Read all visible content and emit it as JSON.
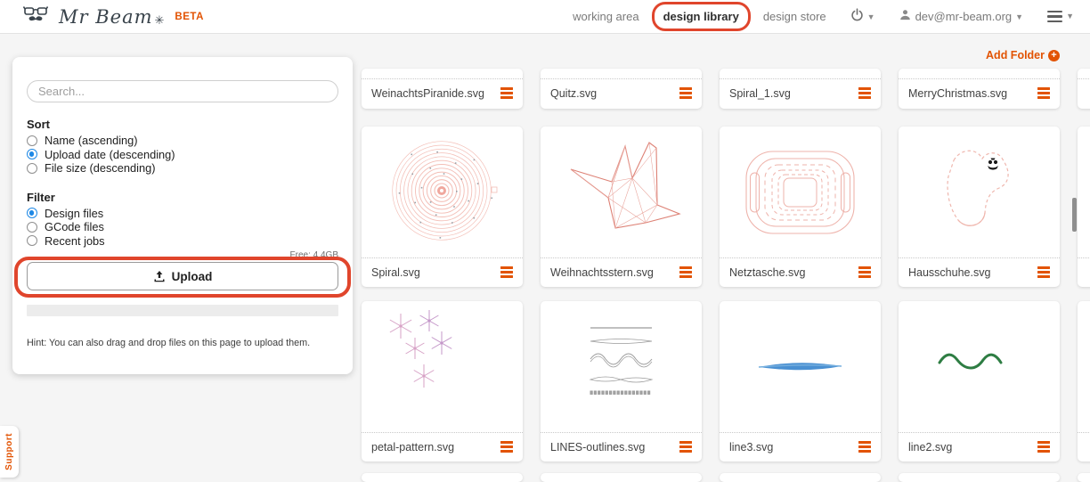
{
  "navbar": {
    "brand_name": "Mr Beam",
    "brand_star": "✳",
    "beta_label": "BETA",
    "items": [
      {
        "label": "working area",
        "active": false
      },
      {
        "label": "design library",
        "active": true,
        "annotated": true
      },
      {
        "label": "design store",
        "active": false
      }
    ],
    "user_email": "dev@mr-beam.org"
  },
  "toolbar": {
    "add_folder_label": "Add Folder"
  },
  "sidebar_panel": {
    "search_placeholder": "Search...",
    "sort": {
      "heading": "Sort",
      "options": [
        {
          "label": "Name (ascending)",
          "selected": false
        },
        {
          "label": "Upload date (descending)",
          "selected": true
        },
        {
          "label": "File size (descending)",
          "selected": false
        }
      ]
    },
    "filter": {
      "heading": "Filter",
      "options": [
        {
          "label": "Design files",
          "selected": true
        },
        {
          "label": "GCode files",
          "selected": false
        },
        {
          "label": "Recent jobs",
          "selected": false
        }
      ]
    },
    "free_space_label": "Free: 4.4GB",
    "upload_button_label": "Upload",
    "hint_text": "Hint: You can also drag and drop files on this page to upload them."
  },
  "grid": {
    "rows": [
      {
        "kind": "partial",
        "files": [
          {
            "name": "WeinachtsPiranide.svg"
          },
          {
            "name": "Quitz.svg"
          },
          {
            "name": "Spiral_1.svg"
          },
          {
            "name": "MerryChristmas.svg"
          }
        ]
      },
      {
        "kind": "full",
        "files": [
          {
            "name": "Spiral.svg",
            "thumb": "spiral"
          },
          {
            "name": "Weihnachtsstern.svg",
            "thumb": "star"
          },
          {
            "name": "Netztasche.svg",
            "thumb": "netbag"
          },
          {
            "name": "Hausschuhe.svg",
            "thumb": "slippers"
          }
        ]
      },
      {
        "kind": "full",
        "files": [
          {
            "name": "petal-pattern.svg",
            "thumb": "petals"
          },
          {
            "name": "LINES-outlines.svg",
            "thumb": "lines"
          },
          {
            "name": "line3.svg",
            "thumb": "bluelens"
          },
          {
            "name": "line2.svg",
            "thumb": "greenwave"
          }
        ]
      },
      {
        "kind": "sliver",
        "files": [
          {
            "name": ""
          },
          {
            "name": ""
          },
          {
            "name": ""
          },
          {
            "name": ""
          }
        ]
      }
    ],
    "has_fifth_column_sliver": true
  },
  "support_tab_label": "Support",
  "colors": {
    "brand_orange": "#e25303",
    "annotation_red": "#e0452c",
    "radio_blue": "#1e88e5"
  }
}
